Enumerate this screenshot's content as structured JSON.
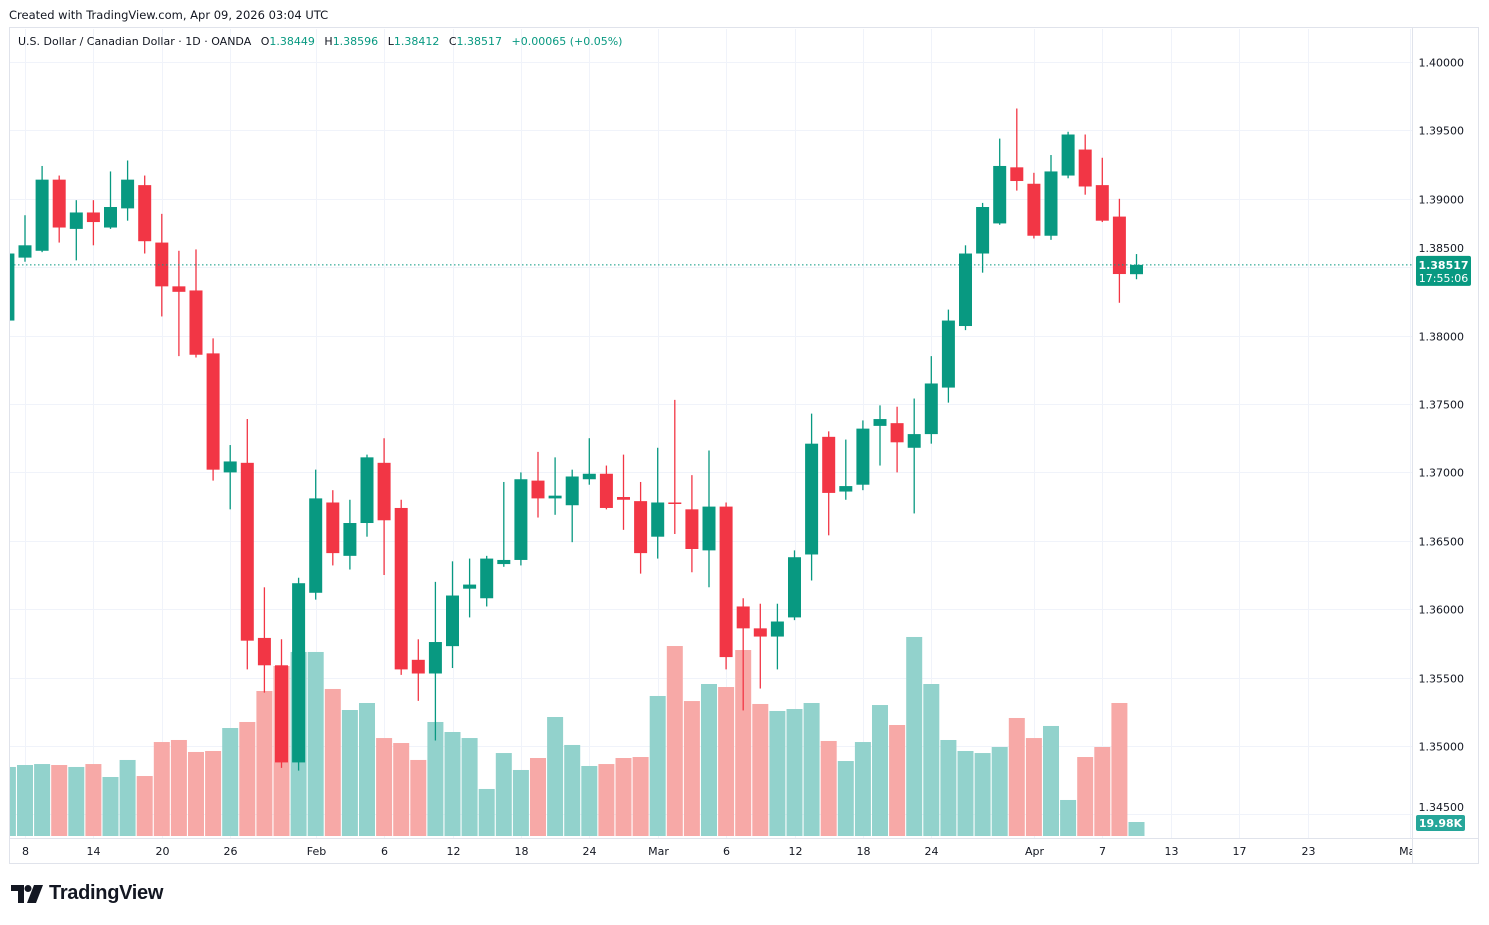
{
  "header": {
    "created": "Created with TradingView.com, Apr 09, 2026 03:04 UTC",
    "symbol": "U.S. Dollar / Canadian Dollar · 1D · OANDA",
    "o_label": "O",
    "o": "1.38449",
    "h_label": "H",
    "h": "1.38596",
    "l_label": "L",
    "l": "1.38412",
    "c_label": "C",
    "c": "1.38517",
    "change": "+0.00065 (+0.05%)"
  },
  "footer": {
    "logo": "TradingView"
  },
  "colors": {
    "up": "#089981",
    "down": "#f23645",
    "vol_up": "#92d2cc",
    "vol_down": "#f7a9a7",
    "grid": "#f0f3fa",
    "border": "#e0e3eb"
  },
  "chart_data": {
    "type": "candlestick",
    "ylim": [
      1.3427,
      1.4025
    ],
    "price_ticks": [
      "1.40000",
      "1.39500",
      "1.39000",
      "1.38500",
      "1.38000",
      "1.37500",
      "1.37000",
      "1.36500",
      "1.36000",
      "1.35500",
      "1.35000",
      "1.34500"
    ],
    "x_ticks": [
      {
        "label": "8",
        "date": "2026-01-08"
      },
      {
        "label": "14",
        "date": "2026-01-14"
      },
      {
        "label": "20",
        "date": "2026-01-20"
      },
      {
        "label": "26",
        "date": "2026-01-26"
      },
      {
        "label": "Feb",
        "date": "2026-02-02"
      },
      {
        "label": "6",
        "date": "2026-02-06"
      },
      {
        "label": "12",
        "date": "2026-02-12"
      },
      {
        "label": "18",
        "date": "2026-02-18"
      },
      {
        "label": "24",
        "date": "2026-02-24"
      },
      {
        "label": "Mar",
        "date": "2026-03-02"
      },
      {
        "label": "6",
        "date": "2026-03-06"
      },
      {
        "label": "12",
        "date": "2026-03-12"
      },
      {
        "label": "18",
        "date": "2026-03-18"
      },
      {
        "label": "24",
        "date": "2026-03-24"
      },
      {
        "label": "Apr",
        "date": "2026-04-01"
      },
      {
        "label": "7",
        "date": "2026-04-07"
      },
      {
        "label": "13",
        "date": "2026-04-13"
      },
      {
        "label": "17",
        "date": "2026-04-17"
      },
      {
        "label": "23",
        "date": "2026-04-23"
      },
      {
        "label": "May",
        "date": "2026-05-01"
      }
    ],
    "last_price": {
      "value": 1.38517,
      "label": "1.38517",
      "countdown": "17:55:06"
    },
    "last_volume_label": "19.98K",
    "volume_unit": "K",
    "candles": [
      [
        "2026-01-07",
        1.3811,
        1.3863,
        1.3809,
        1.386,
        98.5
      ],
      [
        "2026-01-08",
        1.3857,
        1.3888,
        1.3854,
        1.3866,
        101.3
      ],
      [
        "2026-01-09",
        1.3862,
        1.3924,
        1.3861,
        1.3914,
        102.7
      ],
      [
        "2026-01-12",
        1.3914,
        1.3917,
        1.3868,
        1.3879,
        101.3
      ],
      [
        "2026-01-13",
        1.3878,
        1.3899,
        1.3855,
        1.389,
        98.5
      ],
      [
        "2026-01-14",
        1.389,
        1.3899,
        1.3866,
        1.3883,
        102.7
      ],
      [
        "2026-01-15",
        1.3879,
        1.392,
        1.3878,
        1.3894,
        84.2
      ],
      [
        "2026-01-16",
        1.3893,
        1.3928,
        1.3884,
        1.3914,
        108.5
      ],
      [
        "2026-01-19",
        1.391,
        1.3917,
        1.386,
        1.3869,
        85.6
      ],
      [
        "2026-01-20",
        1.3868,
        1.3889,
        1.3814,
        1.3836,
        134.1
      ],
      [
        "2026-01-21",
        1.3836,
        1.3862,
        1.3785,
        1.3832,
        137.0
      ],
      [
        "2026-01-22",
        1.3833,
        1.3863,
        1.3784,
        1.3786,
        119.9
      ],
      [
        "2026-01-23",
        1.3787,
        1.3798,
        1.3694,
        1.3702,
        121.3
      ],
      [
        "2026-01-26",
        1.37,
        1.372,
        1.3673,
        1.3708,
        154.1
      ],
      [
        "2026-01-27",
        1.3707,
        1.3739,
        1.3556,
        1.3577,
        162.7
      ],
      [
        "2026-01-28",
        1.3579,
        1.3616,
        1.3539,
        1.3559,
        206.9
      ],
      [
        "2026-01-29",
        1.3559,
        1.3578,
        1.3484,
        1.3488,
        242.6
      ],
      [
        "2026-01-30",
        1.3488,
        1.3623,
        1.3482,
        1.3619,
        262.6
      ],
      [
        "2026-02-02",
        1.3612,
        1.3702,
        1.3607,
        1.3681,
        262.6
      ],
      [
        "2026-02-03",
        1.3678,
        1.3687,
        1.3632,
        1.3641,
        209.8
      ],
      [
        "2026-02-04",
        1.3639,
        1.368,
        1.3629,
        1.3663,
        179.8
      ],
      [
        "2026-02-05",
        1.3663,
        1.3713,
        1.3653,
        1.3711,
        189.8
      ],
      [
        "2026-02-06",
        1.3707,
        1.3725,
        1.3625,
        1.3665,
        139.8
      ],
      [
        "2026-02-09",
        1.3674,
        1.368,
        1.3552,
        1.3556,
        132.7
      ],
      [
        "2026-02-10",
        1.3563,
        1.3578,
        1.3533,
        1.3553,
        108.5
      ],
      [
        "2026-02-11",
        1.3553,
        1.362,
        1.3504,
        1.3576,
        162.7
      ],
      [
        "2026-02-12",
        1.3573,
        1.3635,
        1.3557,
        1.361,
        148.4
      ],
      [
        "2026-02-13",
        1.3615,
        1.3637,
        1.3594,
        1.3618,
        139.8
      ],
      [
        "2026-02-16",
        1.3608,
        1.3639,
        1.3602,
        1.3637,
        67.1
      ],
      [
        "2026-02-17",
        1.3633,
        1.3693,
        1.3631,
        1.3636,
        118.4
      ],
      [
        "2026-02-18",
        1.3636,
        1.37,
        1.3632,
        1.3695,
        94.2
      ],
      [
        "2026-02-19",
        1.3694,
        1.3715,
        1.3667,
        1.3681,
        111.3
      ],
      [
        "2026-02-20",
        1.3681,
        1.3711,
        1.3669,
        1.3683,
        169.8
      ],
      [
        "2026-02-23",
        1.3676,
        1.3702,
        1.3649,
        1.3697,
        129.9
      ],
      [
        "2026-02-24",
        1.3695,
        1.3725,
        1.3691,
        1.3699,
        99.9
      ],
      [
        "2026-02-25",
        1.3699,
        1.3705,
        1.3673,
        1.3674,
        102.7
      ],
      [
        "2026-02-26",
        1.3682,
        1.3713,
        1.3658,
        1.368,
        111.3
      ],
      [
        "2026-02-27",
        1.3679,
        1.3693,
        1.3626,
        1.3641,
        112.7
      ],
      [
        "2026-03-02",
        1.3653,
        1.3718,
        1.3637,
        1.3678,
        199.8
      ],
      [
        "2026-03-03",
        1.3678,
        1.3753,
        1.3655,
        1.3677,
        271.1
      ],
      [
        "2026-03-04",
        1.3673,
        1.3698,
        1.3627,
        1.3644,
        192.6
      ],
      [
        "2026-03-05",
        1.3643,
        1.3716,
        1.3616,
        1.3675,
        216.9
      ],
      [
        "2026-03-06",
        1.3675,
        1.3678,
        1.3556,
        1.3565,
        212.6
      ],
      [
        "2026-03-09",
        1.3602,
        1.3608,
        1.3526,
        1.3586,
        265.4
      ],
      [
        "2026-03-10",
        1.3586,
        1.3604,
        1.3542,
        1.358,
        188.4
      ],
      [
        "2026-03-11",
        1.358,
        1.3604,
        1.3556,
        1.3591,
        178.4
      ],
      [
        "2026-03-12",
        1.3594,
        1.3643,
        1.3592,
        1.3638,
        181.2
      ],
      [
        "2026-03-13",
        1.364,
        1.3743,
        1.3621,
        1.3721,
        189.8
      ],
      [
        "2026-03-16",
        1.3726,
        1.373,
        1.3654,
        1.3685,
        135.6
      ],
      [
        "2026-03-17",
        1.3686,
        1.3724,
        1.368,
        1.369,
        107.0
      ],
      [
        "2026-03-18",
        1.3691,
        1.3738,
        1.3687,
        1.3732,
        134.1
      ],
      [
        "2026-03-19",
        1.3734,
        1.3749,
        1.3705,
        1.3739,
        186.9
      ],
      [
        "2026-03-20",
        1.3736,
        1.3748,
        1.37,
        1.3722,
        158.4
      ],
      [
        "2026-03-23",
        1.3718,
        1.3754,
        1.367,
        1.3728,
        284.0
      ],
      [
        "2026-03-24",
        1.3728,
        1.3785,
        1.3721,
        1.3765,
        216.9
      ],
      [
        "2026-03-25",
        1.3762,
        1.3819,
        1.3751,
        1.3811,
        137.0
      ],
      [
        "2026-03-26",
        1.3807,
        1.3866,
        1.3804,
        1.386,
        121.3
      ],
      [
        "2026-03-27",
        1.386,
        1.3897,
        1.3846,
        1.3894,
        118.4
      ],
      [
        "2026-03-30",
        1.3882,
        1.3944,
        1.3881,
        1.3924,
        127.0
      ],
      [
        "2026-03-31",
        1.3923,
        1.3966,
        1.3906,
        1.3913,
        168.4
      ],
      [
        "2026-04-01",
        1.3911,
        1.3919,
        1.3871,
        1.3873,
        139.8
      ],
      [
        "2026-04-02",
        1.3873,
        1.3932,
        1.387,
        1.392,
        157.0
      ],
      [
        "2026-04-03",
        1.3917,
        1.3949,
        1.3915,
        1.3947,
        51.4
      ],
      [
        "2026-04-06",
        1.3936,
        1.3947,
        1.3903,
        1.3909,
        112.7
      ],
      [
        "2026-04-07",
        1.391,
        1.393,
        1.3883,
        1.3884,
        127.0
      ],
      [
        "2026-04-08",
        1.3887,
        1.39,
        1.3824,
        1.3845,
        189.8
      ],
      [
        "2026-04-09",
        1.38449,
        1.38596,
        1.38412,
        1.38517,
        19.98
      ]
    ]
  }
}
